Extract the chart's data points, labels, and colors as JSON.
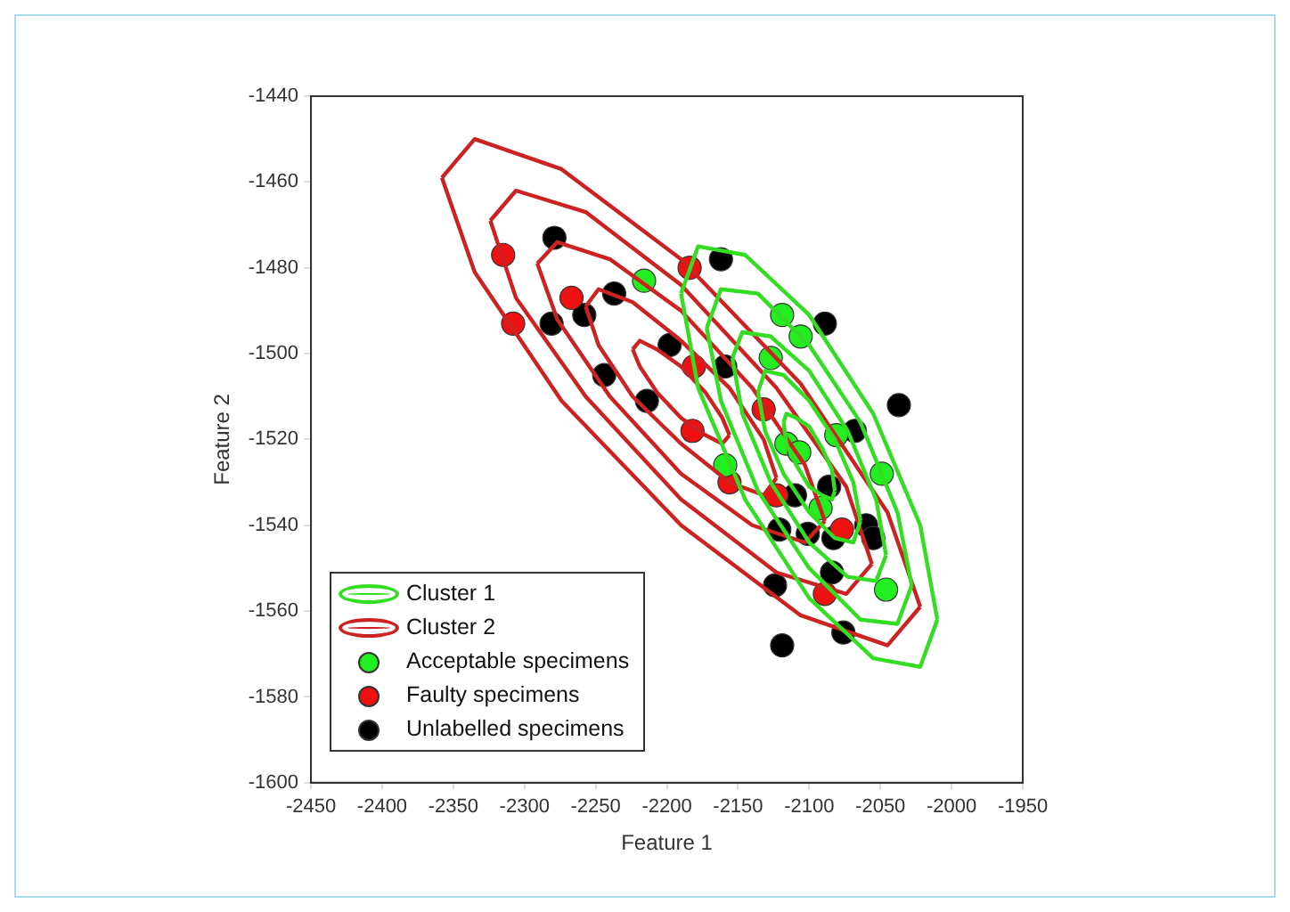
{
  "chart_data": {
    "type": "scatter",
    "xlabel": "Feature 1",
    "ylabel": "Feature 2",
    "xlim": [
      -2450,
      -1950
    ],
    "ylim": [
      -1600,
      -1440
    ],
    "xticks": [
      -2450,
      -2400,
      -2350,
      -2300,
      -2250,
      -2200,
      -2150,
      -2100,
      -2050,
      -2000,
      -1950
    ],
    "yticks": [
      -1600,
      -1580,
      -1560,
      -1540,
      -1520,
      -1500,
      -1480,
      -1460,
      -1440
    ],
    "grid": false,
    "legend": "bottom left",
    "marker": "circle",
    "series": [
      {
        "name": "Cluster 1",
        "type": "line",
        "marker": "none",
        "color": "#33dd22",
        "x": [
          -2190,
          -2178,
          -2145,
          -2100,
          -2055,
          -2022,
          -2010
        ],
        "values": [
          -1486,
          -1475,
          -1477,
          -1491,
          -1514,
          -1540,
          -1562
        ]
      },
      {
        "type": "line",
        "marker": "none",
        "color": "#33dd22",
        "x": [
          -2190,
          -2178,
          -2145,
          -2100,
          -2055,
          -2022,
          -2010
        ],
        "values": [
          -1486,
          -1508,
          -1534,
          -1557,
          -1571,
          -1573,
          -1562
        ]
      },
      {
        "type": "line",
        "marker": "none",
        "color": "#33dd22",
        "x": [
          -2172,
          -2162,
          -2136,
          -2100,
          -2064,
          -2038,
          -2028
        ],
        "values": [
          -1494,
          -1485,
          -1486,
          -1498,
          -1516,
          -1537,
          -1554
        ]
      },
      {
        "type": "line",
        "marker": "none",
        "color": "#33dd22",
        "x": [
          -2172,
          -2162,
          -2136,
          -2100,
          -2064,
          -2038,
          -2028
        ],
        "values": [
          -1494,
          -1511,
          -1532,
          -1550,
          -1562,
          -1563,
          -1554
        ]
      },
      {
        "type": "line",
        "marker": "none",
        "color": "#33dd22",
        "x": [
          -2154,
          -2147,
          -2127,
          -2100,
          -2073,
          -2053,
          -2046
        ],
        "values": [
          -1501,
          -1495,
          -1496,
          -1504,
          -1518,
          -1534,
          -1547
        ]
      },
      {
        "type": "line",
        "marker": "none",
        "color": "#33dd22",
        "x": [
          -2154,
          -2147,
          -2127,
          -2100,
          -2073,
          -2053,
          -2046
        ],
        "values": [
          -1501,
          -1514,
          -1530,
          -1544,
          -1552,
          -1553,
          -1547
        ]
      },
      {
        "type": "line",
        "marker": "none",
        "color": "#33dd22",
        "x": [
          -2136,
          -2131,
          -2118,
          -2100,
          -2082,
          -2069,
          -2064
        ],
        "values": [
          -1509,
          -1504,
          -1505,
          -1511,
          -1520,
          -1530,
          -1539
        ]
      },
      {
        "type": "line",
        "marker": "none",
        "color": "#33dd22",
        "x": [
          -2136,
          -2131,
          -2118,
          -2100,
          -2082,
          -2069,
          -2064
        ],
        "values": [
          -1509,
          -1518,
          -1528,
          -1537,
          -1543,
          -1544,
          -1539
        ]
      },
      {
        "type": "line",
        "marker": "none",
        "color": "#33dd22",
        "x": [
          -2118,
          -2116,
          -2109,
          -2100,
          -2091,
          -2084,
          -2082
        ],
        "values": [
          -1516,
          -1514,
          -1515,
          -1517,
          -1522,
          -1527,
          -1532
        ]
      },
      {
        "type": "line",
        "marker": "none",
        "color": "#33dd22",
        "x": [
          -2118,
          -2116,
          -2109,
          -2100,
          -2091,
          -2084,
          -2082
        ],
        "values": [
          -1516,
          -1521,
          -1526,
          -1531,
          -1533,
          -1534,
          -1532
        ]
      },
      {
        "name": "Cluster 2",
        "type": "line",
        "marker": "none",
        "color": "#cc2222",
        "x": [
          -2358,
          -2335,
          -2274,
          -2190,
          -2106,
          -2045,
          -2022
        ],
        "values": [
          -1459,
          -1450,
          -1457,
          -1478,
          -1507,
          -1537,
          -1559
        ]
      },
      {
        "type": "line",
        "marker": "none",
        "color": "#cc2222",
        "x": [
          -2358,
          -2335,
          -2274,
          -2190,
          -2106,
          -2045,
          -2022
        ],
        "values": [
          -1459,
          -1481,
          -1511,
          -1540,
          -1561,
          -1568,
          -1559
        ]
      },
      {
        "type": "line",
        "marker": "none",
        "color": "#cc2222",
        "x": [
          -2324,
          -2306,
          -2257,
          -2190,
          -2123,
          -2074,
          -2056
        ],
        "values": [
          -1469,
          -1462,
          -1467,
          -1484,
          -1508,
          -1531,
          -1549
        ]
      },
      {
        "type": "line",
        "marker": "none",
        "color": "#cc2222",
        "x": [
          -2324,
          -2306,
          -2257,
          -2190,
          -2123,
          -2074,
          -2056
        ],
        "values": [
          -1469,
          -1487,
          -1510,
          -1534,
          -1551,
          -1556,
          -1549
        ]
      },
      {
        "type": "line",
        "marker": "none",
        "color": "#cc2222",
        "x": [
          -2291,
          -2277,
          -2240,
          -2190,
          -2140,
          -2103,
          -2089
        ],
        "values": [
          -1479,
          -1474,
          -1478,
          -1490,
          -1508,
          -1526,
          -1539
        ]
      },
      {
        "type": "line",
        "marker": "none",
        "color": "#cc2222",
        "x": [
          -2291,
          -2277,
          -2240,
          -2190,
          -2140,
          -2103,
          -2089
        ],
        "values": [
          -1479,
          -1492,
          -1510,
          -1528,
          -1540,
          -1544,
          -1539
        ]
      },
      {
        "type": "line",
        "marker": "none",
        "color": "#cc2222",
        "x": [
          -2257,
          -2248,
          -2224,
          -2190,
          -2156,
          -2132,
          -2123
        ],
        "values": [
          -1489,
          -1485,
          -1488,
          -1497,
          -1508,
          -1520,
          -1529
        ]
      },
      {
        "type": "line",
        "marker": "none",
        "color": "#cc2222",
        "x": [
          -2257,
          -2248,
          -2224,
          -2190,
          -2156,
          -2132,
          -2123
        ],
        "values": [
          -1489,
          -1498,
          -1510,
          -1521,
          -1530,
          -1533,
          -1529
        ]
      },
      {
        "type": "line",
        "marker": "none",
        "color": "#cc2222",
        "x": [
          -2224,
          -2219,
          -2207,
          -2190,
          -2173,
          -2161,
          -2156
        ],
        "values": [
          -1499,
          -1497,
          -1499,
          -1503,
          -1509,
          -1515,
          -1519
        ]
      },
      {
        "type": "line",
        "marker": "none",
        "color": "#cc2222",
        "x": [
          -2224,
          -2219,
          -2207,
          -2190,
          -2173,
          -2161,
          -2156
        ],
        "values": [
          -1499,
          -1503,
          -1509,
          -1515,
          -1519,
          -1521,
          -1519
        ]
      },
      {
        "name": "Acceptable specimens",
        "color": "#22ee22",
        "x": [
          -2216,
          -2119,
          -2106,
          -2127,
          -2116,
          -2107,
          -2159,
          -2081,
          -2049,
          -2092,
          -2046
        ],
        "values": [
          -1483,
          -1491,
          -1496,
          -1501,
          -1521,
          -1523,
          -1526,
          -1519,
          -1528,
          -1536,
          -1555
        ]
      },
      {
        "name": "Faulty specimens",
        "color": "#ee1111",
        "x": [
          -2315,
          -2308,
          -2267,
          -2184,
          -2181,
          -2132,
          -2182,
          -2156,
          -2123,
          -2077,
          -2089
        ],
        "values": [
          -1477,
          -1493,
          -1487,
          -1480,
          -1503,
          -1513,
          -1518,
          -1530,
          -1533,
          -1541,
          -1556
        ]
      },
      {
        "name": "Unlabelled specimens",
        "color": "#000000",
        "x": [
          -2279,
          -2281,
          -2258,
          -2237,
          -2198,
          -2244,
          -2214,
          -2162,
          -2089,
          -2159,
          -2037,
          -2068,
          -2110,
          -2086,
          -2121,
          -2101,
          -2083,
          -2060,
          -2055,
          -2084,
          -2124,
          -2076,
          -2119
        ],
        "values": [
          -1473,
          -1493,
          -1491,
          -1486,
          -1498,
          -1505,
          -1511,
          -1478,
          -1493,
          -1503,
          -1512,
          -1518,
          -1533,
          -1531,
          -1541,
          -1542,
          -1543,
          -1540,
          -1543,
          -1551,
          -1554,
          -1565,
          -1568
        ]
      }
    ]
  }
}
